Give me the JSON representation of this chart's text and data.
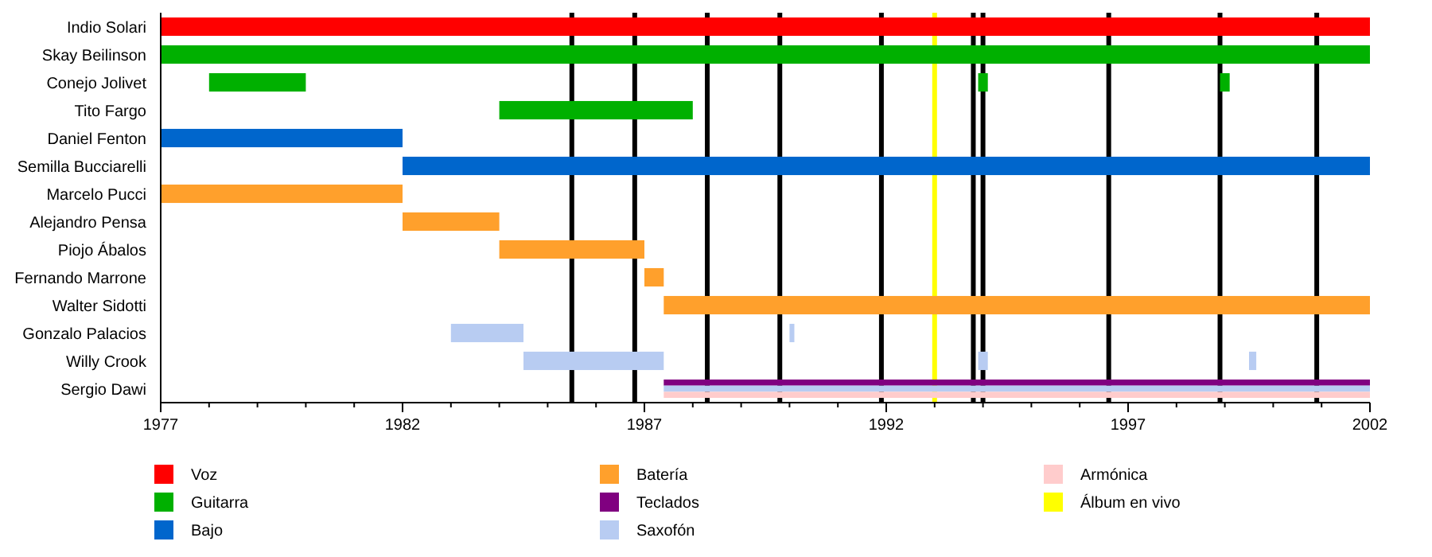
{
  "chart_data": {
    "type": "bar",
    "orientation": "horizontal",
    "categories": [
      "Indio Solari",
      "Skay Beilinson",
      "Conejo Jolivet",
      "Tito Fargo",
      "Daniel Fenton",
      "Semilla Bucciarelli",
      "Marcelo Pucci",
      "Alejandro Pensa",
      "Piojo Ábalos",
      "Fernando Marrone",
      "Walter Sidotti",
      "Gonzalo Palacios",
      "Willy Crook",
      "Sergio Dawi"
    ],
    "series": [
      {
        "name": "Voz",
        "color": "#ff0000",
        "base": [
          1977,
          null,
          null,
          null,
          null,
          null,
          null,
          null,
          null,
          null,
          null,
          null,
          null,
          null
        ],
        "values": [
          25,
          null,
          null,
          null,
          null,
          null,
          null,
          null,
          null,
          null,
          null,
          null,
          null,
          null
        ]
      },
      {
        "name": "Guitarra",
        "color": "#00b000",
        "base": [
          null,
          1977,
          1978,
          1984,
          null,
          null,
          null,
          null,
          null,
          null,
          null,
          null,
          null,
          null
        ],
        "values": [
          null,
          25,
          2,
          4,
          null,
          null,
          null,
          null,
          null,
          null,
          null,
          null,
          null,
          null
        ]
      },
      {
        "name": "Bajo",
        "color": "#0066cc",
        "base": [
          null,
          null,
          null,
          null,
          1977,
          1982,
          null,
          null,
          null,
          null,
          null,
          null,
          null,
          null
        ],
        "values": [
          null,
          null,
          null,
          null,
          5,
          20,
          null,
          null,
          null,
          null,
          null,
          null,
          null,
          null
        ]
      },
      {
        "name": "Batería",
        "color": "#ffa02c",
        "base": [
          null,
          null,
          null,
          null,
          null,
          null,
          1977,
          1982,
          1984,
          1987,
          1987.4,
          null,
          null,
          null
        ],
        "values": [
          null,
          null,
          null,
          null,
          null,
          null,
          5,
          2,
          3,
          0.4,
          14.6,
          null,
          null,
          null
        ]
      },
      {
        "name": "Teclados",
        "color": "#800080",
        "base": [
          null,
          null,
          null,
          null,
          null,
          null,
          null,
          null,
          null,
          null,
          null,
          null,
          null,
          1987.4
        ],
        "values": [
          null,
          null,
          null,
          null,
          null,
          null,
          null,
          null,
          null,
          null,
          null,
          null,
          null,
          14.6
        ]
      },
      {
        "name": "Saxofón",
        "color": "#b8ccf2",
        "base": [
          null,
          null,
          null,
          null,
          null,
          null,
          null,
          null,
          null,
          null,
          null,
          1983,
          1984.5,
          1987.4
        ],
        "values": [
          null,
          null,
          null,
          null,
          null,
          null,
          null,
          null,
          null,
          null,
          null,
          1.5,
          2.9,
          14.6
        ]
      },
      {
        "name": "Armónica",
        "color": "#ffcccc",
        "base": [
          null,
          null,
          null,
          null,
          null,
          null,
          null,
          null,
          null,
          null,
          null,
          null,
          null,
          1987.4
        ],
        "values": [
          null,
          null,
          null,
          null,
          null,
          null,
          null,
          null,
          null,
          null,
          null,
          null,
          null,
          14.6
        ]
      },
      {
        "color": "#00b000",
        "base": [
          null,
          null,
          1993.9,
          null,
          null,
          null,
          null,
          null,
          null,
          null,
          null,
          null,
          null,
          null
        ],
        "values": [
          null,
          null,
          0.2,
          null,
          null,
          null,
          null,
          null,
          null,
          null,
          null,
          null,
          null,
          null
        ]
      },
      {
        "color": "#00b000",
        "base": [
          null,
          null,
          1998.9,
          null,
          null,
          null,
          null,
          null,
          null,
          null,
          null,
          null,
          null,
          null
        ],
        "values": [
          null,
          null,
          0.2,
          null,
          null,
          null,
          null,
          null,
          null,
          null,
          null,
          null,
          null,
          null
        ]
      },
      {
        "color": "#b8ccf2",
        "base": [
          null,
          null,
          null,
          null,
          null,
          null,
          null,
          null,
          null,
          null,
          null,
          1990,
          1993.9,
          null
        ],
        "values": [
          null,
          null,
          null,
          null,
          null,
          null,
          null,
          null,
          null,
          null,
          null,
          0.1,
          0.2,
          null
        ]
      },
      {
        "color": "#b8ccf2",
        "base": [
          null,
          null,
          null,
          null,
          null,
          null,
          null,
          null,
          null,
          null,
          null,
          null,
          1999.5,
          null
        ],
        "values": [
          null,
          null,
          null,
          null,
          null,
          null,
          null,
          null,
          null,
          null,
          null,
          null,
          0.15,
          null
        ]
      }
    ],
    "xlim": [
      1977,
      2002
    ],
    "xticks": [
      1977,
      {
        "value": 1978,
        "label": null
      },
      {
        "value": 1979,
        "label": null
      },
      {
        "value": 1980,
        "label": null
      },
      {
        "value": 1981,
        "label": null
      },
      1982,
      {
        "value": 1983,
        "label": null
      },
      {
        "value": 1984,
        "label": null
      },
      {
        "value": 1985,
        "label": null
      },
      {
        "value": 1986,
        "label": null
      },
      1987,
      {
        "value": 1988,
        "label": null
      },
      {
        "value": 1989,
        "label": null
      },
      {
        "value": 1990,
        "label": null
      },
      {
        "value": 1991,
        "label": null
      },
      1992,
      {
        "value": 1993,
        "label": null
      },
      {
        "value": 1994,
        "label": null
      },
      {
        "value": 1995,
        "label": null
      },
      {
        "value": 1996,
        "label": null
      },
      1997,
      {
        "value": 1998,
        "label": null
      },
      {
        "value": 1999,
        "label": null
      },
      {
        "value": 2000,
        "label": null
      },
      {
        "value": 2001,
        "label": null
      },
      2002
    ],
    "ref_lines": [
      {
        "axis": "x",
        "value": 1985.5,
        "color": "#000000"
      },
      {
        "axis": "x",
        "value": 1986.8,
        "color": "#000000"
      },
      {
        "axis": "x",
        "value": 1988.3,
        "color": "#000000"
      },
      {
        "axis": "x",
        "value": 1989.8,
        "color": "#000000"
      },
      {
        "axis": "x",
        "value": 1991.9,
        "color": "#000000"
      },
      {
        "axis": "x",
        "value": 1993.8,
        "color": "#000000"
      },
      {
        "axis": "x",
        "value": 1994,
        "color": "#000000"
      },
      {
        "axis": "x",
        "value": 1996.6,
        "color": "#000000"
      },
      {
        "axis": "x",
        "value": 1998.9,
        "color": "#000000"
      },
      {
        "axis": "x",
        "value": 2000.9,
        "color": "#000000"
      },
      {
        "axis": "x",
        "value": 1993,
        "color": "#ffff00",
        "label": "Álbum en vivo"
      }
    ],
    "grid": false,
    "legend": "bottom"
  }
}
